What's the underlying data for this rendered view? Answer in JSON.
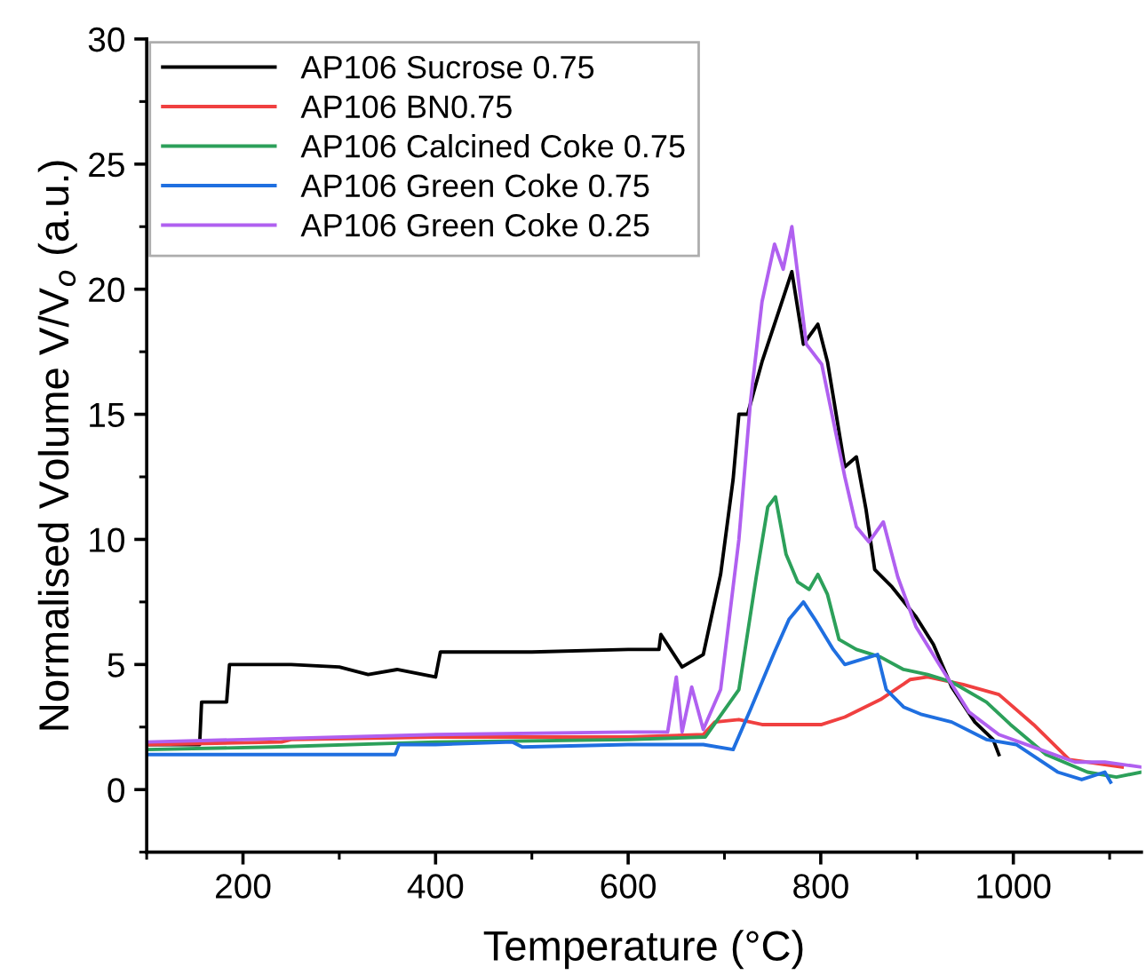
{
  "chart_data": {
    "type": "line",
    "xlabel": "Temperature (°C)",
    "ylabel": "Normalised Volume V/V$_{o}$ (a.u.)",
    "xlim": [
      100,
      1133
    ],
    "ylim": [
      -2.5,
      30
    ],
    "xticks": [
      200,
      400,
      600,
      800,
      1000
    ],
    "yticks": [
      0,
      5,
      10,
      15,
      20,
      25,
      30
    ],
    "grid": false,
    "legend": "top left",
    "marker": "none",
    "line_style": "solid",
    "series": [
      {
        "name": "AP106 Sucrose 0.75",
        "color": "#000000",
        "x": [
          100,
          155,
          157,
          183,
          186,
          250,
          300,
          330,
          360,
          400,
          405,
          500,
          600,
          632,
          634,
          656,
          678,
          696,
          709,
          715,
          724,
          739,
          758,
          770,
          782,
          797,
          807,
          825,
          837,
          847,
          856,
          874,
          899,
          917,
          936,
          960,
          979,
          985
        ],
        "values": [
          1.8,
          1.8,
          3.5,
          3.5,
          5.0,
          5.0,
          4.9,
          4.6,
          4.8,
          4.5,
          5.5,
          5.5,
          5.6,
          5.6,
          6.2,
          4.9,
          5.4,
          8.6,
          12.4,
          15.0,
          15.0,
          17.1,
          19.3,
          20.7,
          17.8,
          18.6,
          17.1,
          12.9,
          13.3,
          11.2,
          8.8,
          8.1,
          6.9,
          5.8,
          4.1,
          2.7,
          2.0,
          1.4
        ]
      },
      {
        "name": "AP106 BN0.75",
        "color": "#f04040",
        "x": [
          100,
          240,
          250,
          400,
          600,
          678,
          690,
          715,
          739,
          801,
          825,
          862,
          893,
          911,
          948,
          985,
          1021,
          1058,
          1095,
          1113
        ],
        "values": [
          1.8,
          1.9,
          2.0,
          2.1,
          2.1,
          2.2,
          2.7,
          2.8,
          2.6,
          2.6,
          2.9,
          3.6,
          4.4,
          4.5,
          4.2,
          3.8,
          2.6,
          1.2,
          1.0,
          0.9
        ]
      },
      {
        "name": "AP106 Calcined Coke 0.75",
        "color": "#2ca05a",
        "x": [
          100,
          230,
          400,
          600,
          680,
          715,
          733,
          745,
          753,
          764,
          776,
          788,
          797,
          807,
          819,
          837,
          862,
          886,
          911,
          936,
          972,
          997,
          1034,
          1077,
          1107,
          1133
        ],
        "values": [
          1.6,
          1.7,
          1.9,
          2.0,
          2.1,
          4.0,
          8.5,
          11.3,
          11.7,
          9.4,
          8.3,
          8.0,
          8.6,
          7.8,
          6.0,
          5.6,
          5.3,
          4.8,
          4.6,
          4.3,
          3.5,
          2.6,
          1.4,
          0.7,
          0.5,
          0.7
        ]
      },
      {
        "name": "AP106 Green Coke 0.75",
        "color": "#1f6fe0",
        "x": [
          100,
          358,
          362,
          400,
          480,
          490,
          600,
          678,
          709,
          727,
          752,
          767,
          782,
          794,
          813,
          825,
          859,
          868,
          886,
          905,
          936,
          972,
          1003,
          1046,
          1071,
          1095,
          1101
        ],
        "values": [
          1.4,
          1.4,
          1.8,
          1.8,
          1.9,
          1.7,
          1.8,
          1.8,
          1.6,
          3.2,
          5.5,
          6.8,
          7.5,
          6.8,
          5.6,
          5.0,
          5.4,
          4.0,
          3.3,
          3.0,
          2.7,
          2.0,
          1.8,
          0.7,
          0.4,
          0.7,
          0.3
        ]
      },
      {
        "name": "AP106 Green Coke 0.25",
        "color": "#b060f0",
        "x": [
          100,
          200,
          400,
          600,
          641,
          650,
          656,
          666,
          678,
          696,
          715,
          727,
          739,
          752,
          761,
          770,
          785,
          801,
          825,
          837,
          850,
          865,
          880,
          899,
          923,
          954,
          985,
          1021,
          1064,
          1095,
          1133
        ],
        "values": [
          1.9,
          2.0,
          2.2,
          2.3,
          2.3,
          4.5,
          2.3,
          4.1,
          2.4,
          4.0,
          10.0,
          15.5,
          19.5,
          21.8,
          20.8,
          22.5,
          17.8,
          17.0,
          12.5,
          10.5,
          9.9,
          10.7,
          8.5,
          6.5,
          5.0,
          3.1,
          2.2,
          1.7,
          1.1,
          1.1,
          0.9
        ]
      }
    ]
  }
}
